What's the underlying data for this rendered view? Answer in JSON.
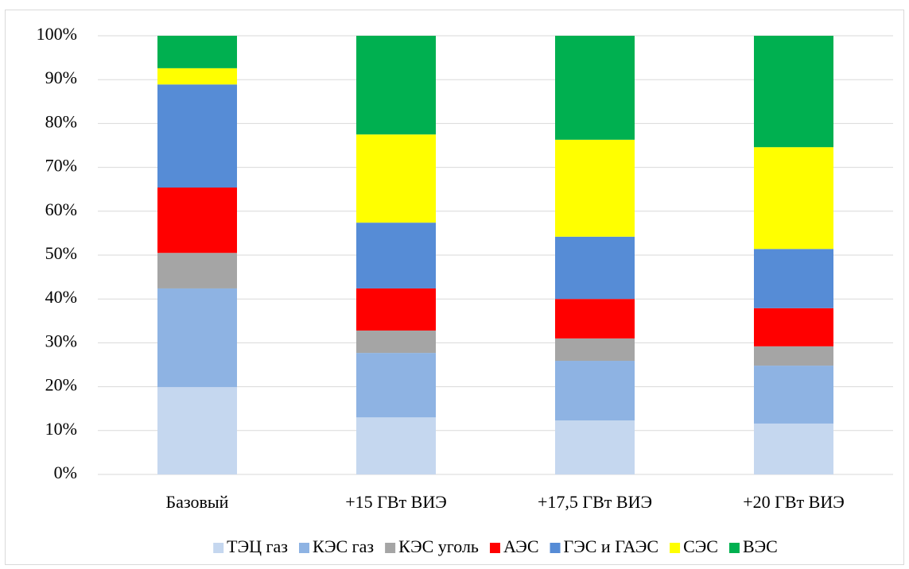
{
  "chart_data": {
    "type": "stacked-bar-100",
    "categories": [
      "Базовый",
      "+15 ГВт ВИЭ",
      "+17,5 ГВт ВИЭ",
      "+20 ГВт ВИЭ"
    ],
    "series": [
      {
        "name": "ТЭЦ газ",
        "color": "#c5d7ef",
        "values": [
          19.9,
          13.0,
          12.3,
          11.6
        ]
      },
      {
        "name": "КЭС газ",
        "color": "#8eb3e3",
        "values": [
          22.5,
          14.7,
          13.6,
          13.2
        ]
      },
      {
        "name": "КЭС уголь",
        "color": "#a5a5a5",
        "values": [
          8.1,
          5.1,
          5.1,
          4.4
        ]
      },
      {
        "name": "АЭС",
        "color": "#ff0000",
        "values": [
          14.9,
          9.6,
          9.0,
          8.7
        ]
      },
      {
        "name": "ГЭС и ГАЭС",
        "color": "#568cd6",
        "values": [
          23.5,
          15.0,
          14.2,
          13.5
        ]
      },
      {
        "name": "СЭС",
        "color": "#ffff00",
        "values": [
          3.7,
          20.1,
          22.1,
          23.2
        ]
      },
      {
        "name": "ВЭС",
        "color": "#00b050",
        "values": [
          7.4,
          22.5,
          23.7,
          25.4
        ]
      }
    ],
    "ylim": [
      0,
      100
    ],
    "yticks": [
      {
        "value": 0,
        "label": "0%"
      },
      {
        "value": 10,
        "label": "10%"
      },
      {
        "value": 20,
        "label": "20%"
      },
      {
        "value": 30,
        "label": "30%"
      },
      {
        "value": 40,
        "label": "40%"
      },
      {
        "value": 50,
        "label": "50%"
      },
      {
        "value": 60,
        "label": "60%"
      },
      {
        "value": 70,
        "label": "70%"
      },
      {
        "value": 80,
        "label": "80%"
      },
      {
        "value": 90,
        "label": "90%"
      },
      {
        "value": 100,
        "label": "100%"
      }
    ],
    "grid": true,
    "legend": "bottom"
  }
}
